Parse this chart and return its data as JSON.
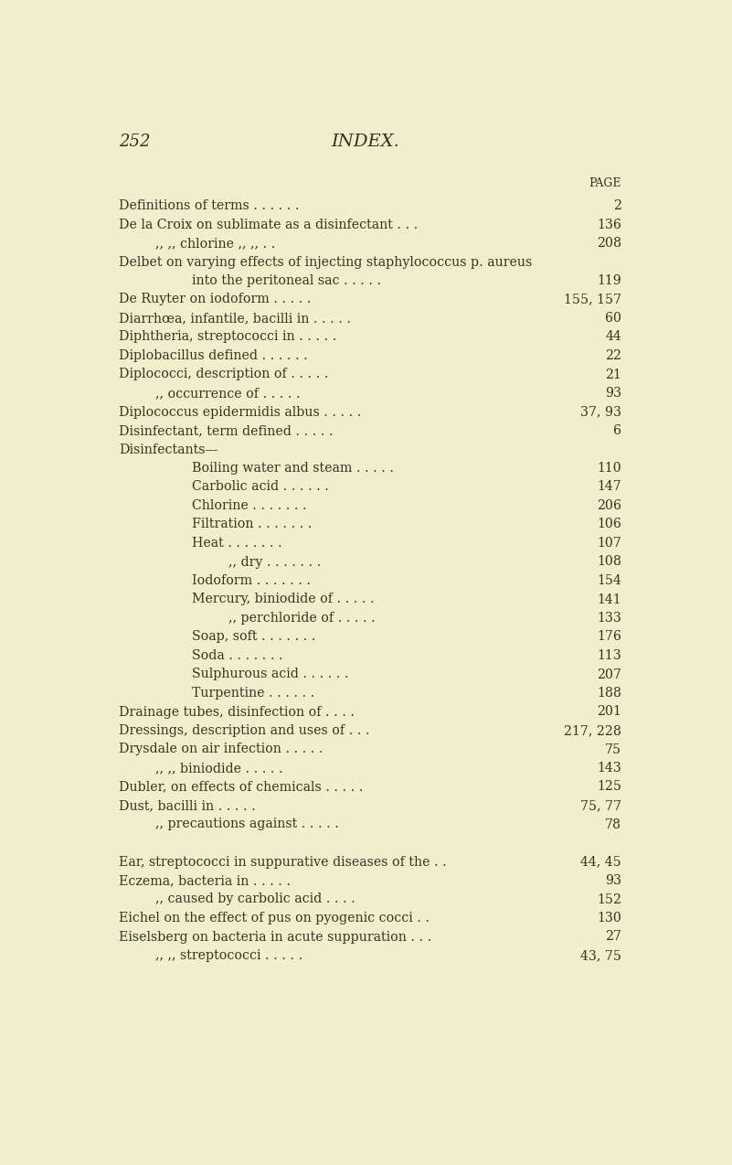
{
  "bg_color": "#f0eecc",
  "text_color": "#3a3020",
  "page_num": "252",
  "page_title": "INDEX.",
  "col_header": "PAGE",
  "lines": [
    {
      "text": "Definitions of terms . . . . . .",
      "page": "2",
      "indent": 0
    },
    {
      "text": "De la Croix on sublimate as a disinfectant . . .",
      "page": "136",
      "indent": 0
    },
    {
      "text": ",, ,, chlorine ,, ,, . .",
      "page": "208",
      "indent": 1
    },
    {
      "text": "Delbet on varying effects of injecting staphylococcus p. aureus",
      "page": "",
      "indent": 0
    },
    {
      "text": "into the peritoneal sac . . . . .",
      "page": "119",
      "indent": 2
    },
    {
      "text": "De Ruyter on iodoform . . . . .",
      "page": "155, 157",
      "indent": 0
    },
    {
      "text": "Diarrhœa, infantile, bacilli in . . . . .",
      "page": "60",
      "indent": 0
    },
    {
      "text": "Diphtheria, streptococci in . . . . .",
      "page": "44",
      "indent": 0
    },
    {
      "text": "Diplobacillus defined . . . . . .",
      "page": "22",
      "indent": 0
    },
    {
      "text": "Diplococci, description of . . . . .",
      "page": "21",
      "indent": 0
    },
    {
      "text": ",, occurrence of . . . . .",
      "page": "93",
      "indent": 1
    },
    {
      "text": "Diplococcus epidermidis albus . . . . .",
      "page": "37, 93",
      "indent": 0
    },
    {
      "text": "Disinfectant, term defined . . . . .",
      "page": "6",
      "indent": 0
    },
    {
      "text": "Disinfectants—",
      "page": "",
      "indent": 0
    },
    {
      "text": "Boiling water and steam . . . . .",
      "page": "110",
      "indent": 2
    },
    {
      "text": "Carbolic acid . . . . . .",
      "page": "147",
      "indent": 2
    },
    {
      "text": "Chlorine . . . . . . .",
      "page": "206",
      "indent": 2
    },
    {
      "text": "Filtration . . . . . . .",
      "page": "106",
      "indent": 2
    },
    {
      "text": "Heat . . . . . . .",
      "page": "107",
      "indent": 2
    },
    {
      "text": ",, dry . . . . . . .",
      "page": "108",
      "indent": 3
    },
    {
      "text": "Iodoform . . . . . . .",
      "page": "154",
      "indent": 2
    },
    {
      "text": "Mercury, biniodide of . . . . .",
      "page": "141",
      "indent": 2
    },
    {
      "text": ",, perchloride of . . . . .",
      "page": "133",
      "indent": 3
    },
    {
      "text": "Soap, soft . . . . . . .",
      "page": "176",
      "indent": 2
    },
    {
      "text": "Soda . . . . . . .",
      "page": "113",
      "indent": 2
    },
    {
      "text": "Sulphurous acid . . . . . .",
      "page": "207",
      "indent": 2
    },
    {
      "text": "Turpentine . . . . . .",
      "page": "188",
      "indent": 2
    },
    {
      "text": "Drainage tubes, disinfection of . . . .",
      "page": "201",
      "indent": 0
    },
    {
      "text": "Dressings, description and uses of . . .",
      "page": "217, 228",
      "indent": 0
    },
    {
      "text": "Drysdale on air infection . . . . .",
      "page": "75",
      "indent": 0
    },
    {
      "text": ",, ,, biniodide . . . . .",
      "page": "143",
      "indent": 1
    },
    {
      "text": "Dubler, on effects of chemicals . . . . .",
      "page": "125",
      "indent": 0
    },
    {
      "text": "Dust, bacilli in . . . . .",
      "page": "75, 77",
      "indent": 0
    },
    {
      "text": ",, precautions against . . . . .",
      "page": "78",
      "indent": 1
    },
    {
      "text": "",
      "page": "",
      "indent": 0,
      "spacer": true
    },
    {
      "text": "Ear, streptococci in suppurative diseases of the . .",
      "page": "44, 45",
      "indent": 0
    },
    {
      "text": "Eczema, bacteria in . . . . .",
      "page": "93",
      "indent": 0
    },
    {
      "text": ",, caused by carbolic acid . . . .",
      "page": "152",
      "indent": 1
    },
    {
      "text": "Eichel on the effect of pus on pyogenic cocci . .",
      "page": "130",
      "indent": 0
    },
    {
      "text": "Eiselsberg on bacteria in acute suppuration . . .",
      "page": "27",
      "indent": 0
    },
    {
      "text": ",, ,, streptococci . . . . .",
      "page": "43, 75",
      "indent": 1
    }
  ]
}
